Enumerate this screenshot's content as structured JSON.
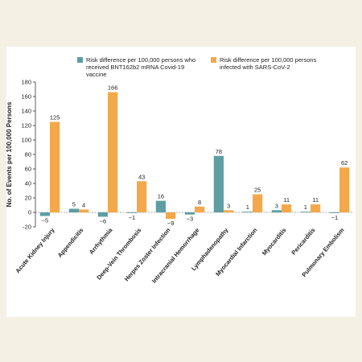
{
  "chart_data": {
    "type": "bar",
    "y_label": "No. of Events per 100,000 Persons",
    "categories": [
      "Acute Kidney Injury",
      "Appendicitis",
      "Arrhythmia",
      "Deep-Vein Thrombosis",
      "Herpes Zoster Infection",
      "Intracranial Hemorrhage",
      "Lymphadenopathy",
      "Myocardial Infarction",
      "Myocarditis",
      "Pericarditis",
      "Pulmonary Embolism"
    ],
    "series": [
      {
        "name": "Risk difference per 100,000 persons who received BNT162b2 mRNA Covid-19 vaccine",
        "color": "#5e9ea3",
        "values": [
          -5,
          5,
          -6,
          -1,
          16,
          -3,
          78,
          1,
          3,
          1,
          -1
        ],
        "value_labels": [
          "−5",
          "5",
          "−6",
          "−1",
          "16",
          "−3",
          "78",
          "1",
          "3",
          "1",
          "−1"
        ]
      },
      {
        "name": "Risk difference per 100,000 persons infected with SARS-CoV-2",
        "color": "#f3a94b",
        "values": [
          125,
          4,
          166,
          43,
          -9,
          8,
          3,
          25,
          11,
          11,
          62
        ],
        "value_labels": [
          "125",
          "4",
          "166",
          "43",
          "−9",
          "8",
          "3",
          "25",
          "11",
          "11",
          "62"
        ]
      }
    ],
    "ylim": [
      -20,
      180
    ],
    "yticks": [
      -20,
      0,
      20,
      40,
      60,
      80,
      100,
      120,
      140,
      160,
      180
    ]
  }
}
